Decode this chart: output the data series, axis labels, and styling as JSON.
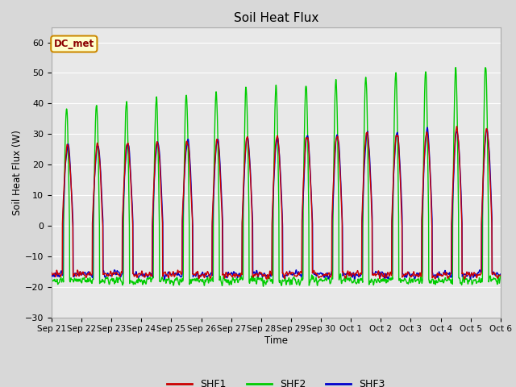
{
  "title": "Soil Heat Flux",
  "ylabel": "Soil Heat Flux (W)",
  "xlabel": "Time",
  "ylim": [
    -30,
    65
  ],
  "yticks": [
    -30,
    -20,
    -10,
    0,
    10,
    20,
    30,
    40,
    50,
    60
  ],
  "n_days": 15,
  "pts_per_day": 144,
  "xtick_labels": [
    "Sep 21",
    "Sep 22",
    "Sep 23",
    "Sep 24",
    "Sep 25",
    "Sep 26",
    "Sep 27",
    "Sep 28",
    "Sep 29",
    "Sep 30",
    "Oct 1",
    "Oct 2",
    "Oct 3",
    "Oct 4",
    "Oct 5",
    "Oct 6"
  ],
  "shf1_color": "#cc0000",
  "shf2_color": "#00cc00",
  "shf3_color": "#0000cc",
  "fig_bg_color": "#d8d8d8",
  "ax_bg_color": "#e8e8e8",
  "annotation_text": "DC_met",
  "annotation_fg": "#8b0000",
  "annotation_bg": "#ffffcc",
  "annotation_border": "#cc8800",
  "grid_color": "#ffffff",
  "legend_labels": [
    "SHF1",
    "SHF2",
    "SHF3"
  ]
}
